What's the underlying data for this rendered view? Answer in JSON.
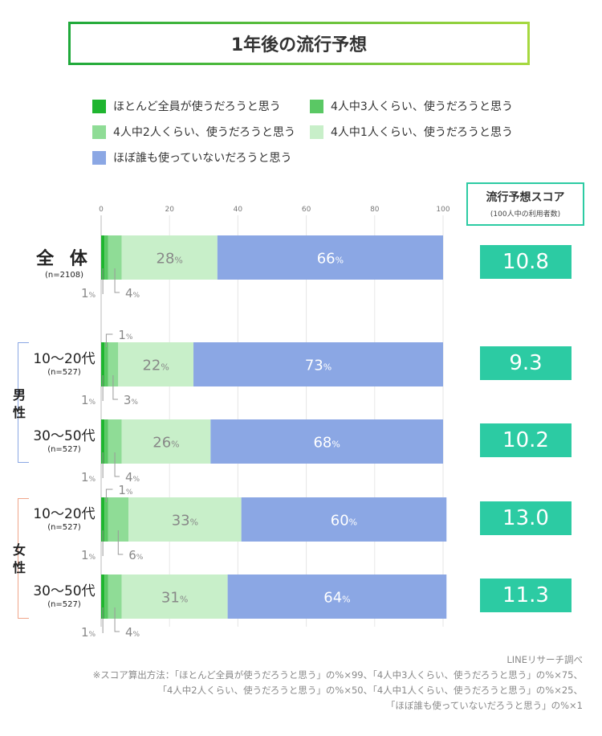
{
  "title": "1年後の流行予想",
  "legend": [
    {
      "label": "ほとんど全員が使うだろうと思う",
      "color": "#1fb52f"
    },
    {
      "label": "4人中3人くらい、使うだろうと思う",
      "color": "#5ac864"
    },
    {
      "label": "4人中2人くらい、使うだろうと思う",
      "color": "#8fdc96"
    },
    {
      "label": "4人中1人くらい、使うだろうと思う",
      "color": "#c8efc9"
    },
    {
      "label": "ほぼ誰も使っていないだろうと思う",
      "color": "#8ba7e4"
    }
  ],
  "score_header": {
    "title": "流行予想スコア",
    "subtitle": "(100人中の利用者数)"
  },
  "groups": {
    "male": "男性",
    "female": "女性",
    "male_color": "#8ba7e4",
    "female_color": "#f0a58a"
  },
  "rows": [
    {
      "label": "全 体",
      "n": "(n=2108)",
      "score": "10.8"
    },
    {
      "label": "10〜20代",
      "n": "(n=527)",
      "score": "9.3"
    },
    {
      "label": "30〜50代",
      "n": "(n=527)",
      "score": "10.2"
    },
    {
      "label": "10〜20代",
      "n": "(n=527)",
      "score": "13.0"
    },
    {
      "label": "30〜50代",
      "n": "(n=527)",
      "score": "11.3"
    }
  ],
  "chart_data": {
    "type": "bar",
    "orientation": "horizontal",
    "stacked": true,
    "xlim": [
      0,
      100
    ],
    "xticks": [
      "0",
      "20",
      "40",
      "60",
      "80",
      "100"
    ],
    "unit": "%",
    "categories": [
      "全体",
      "男性 10〜20代",
      "男性 30〜50代",
      "女性 10〜20代",
      "女性 30〜50代"
    ],
    "series": [
      {
        "name": "ほとんど全員が使うだろうと思う",
        "values": [
          1,
          1,
          1,
          1,
          1
        ],
        "shown_labels": [
          "1",
          "1",
          "1",
          "1",
          "1"
        ]
      },
      {
        "name": "4人中3人くらい、使うだろうと思う",
        "values": [
          1,
          1,
          1,
          1,
          1
        ],
        "shown_labels": [
          "",
          "1",
          "",
          "1",
          ""
        ]
      },
      {
        "name": "4人中2人くらい、使うだろうと思う",
        "values": [
          4,
          3,
          4,
          6,
          4
        ],
        "shown_labels": [
          "4",
          "3",
          "4",
          "6",
          "4"
        ]
      },
      {
        "name": "4人中1人くらい、使うだろうと思う",
        "values": [
          28,
          22,
          26,
          33,
          31
        ],
        "shown_labels": [
          "28",
          "22",
          "26",
          "33",
          "31"
        ]
      },
      {
        "name": "ほぼ誰も使っていないだろうと思う",
        "values": [
          66,
          73,
          68,
          60,
          64
        ],
        "shown_labels": [
          "66",
          "73",
          "68",
          "60",
          "64"
        ]
      }
    ]
  },
  "footer": {
    "source": "LINEリサーチ調べ",
    "note1": "※スコア算出方法：「ほとんど全員が使うだろうと思う」の%×99、「4人中3人くらい、使うだろうと思う」の%×75、",
    "note2": "「4人中2人くらい、使うだろうと思う」の%×50、「4人中1人くらい、使うだろうと思う」の%×25、",
    "note3": "「ほぼ誰も使っていないだろうと思う」の%×1"
  }
}
